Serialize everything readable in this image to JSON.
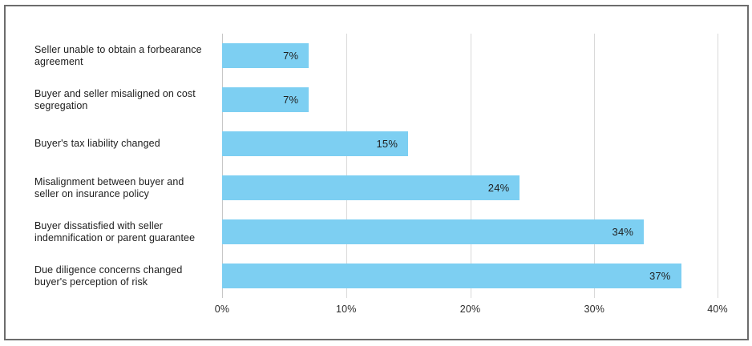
{
  "chart_data": {
    "type": "bar",
    "orientation": "horizontal",
    "title": "",
    "categories": [
      "Seller unable to obtain a forbearance agreement",
      "Buyer and seller misaligned on cost segregation",
      "Buyer's tax liability changed",
      "Misalignment between buyer and seller on insurance policy",
      "Buyer dissatisfied with seller indemnification or parent guarantee",
      "Due diligence concerns changed buyer's perception of risk"
    ],
    "values": [
      7,
      7,
      15,
      24,
      34,
      37
    ],
    "value_labels": [
      "7%",
      "7%",
      "15%",
      "24%",
      "34%",
      "37%"
    ],
    "x_ticks": [
      "0%",
      "10%",
      "20%",
      "30%",
      "40%"
    ],
    "xlim": [
      0,
      40
    ],
    "xlabel": "",
    "ylabel": "",
    "grid": true,
    "legend": "none",
    "bar_color": "#7dcff2",
    "gridline_color": "#d9d9d9",
    "zero_line_color": "#c7c7c7",
    "frame_border_color": "#6c6c6c",
    "label_text_color": "#1c1c1c"
  }
}
